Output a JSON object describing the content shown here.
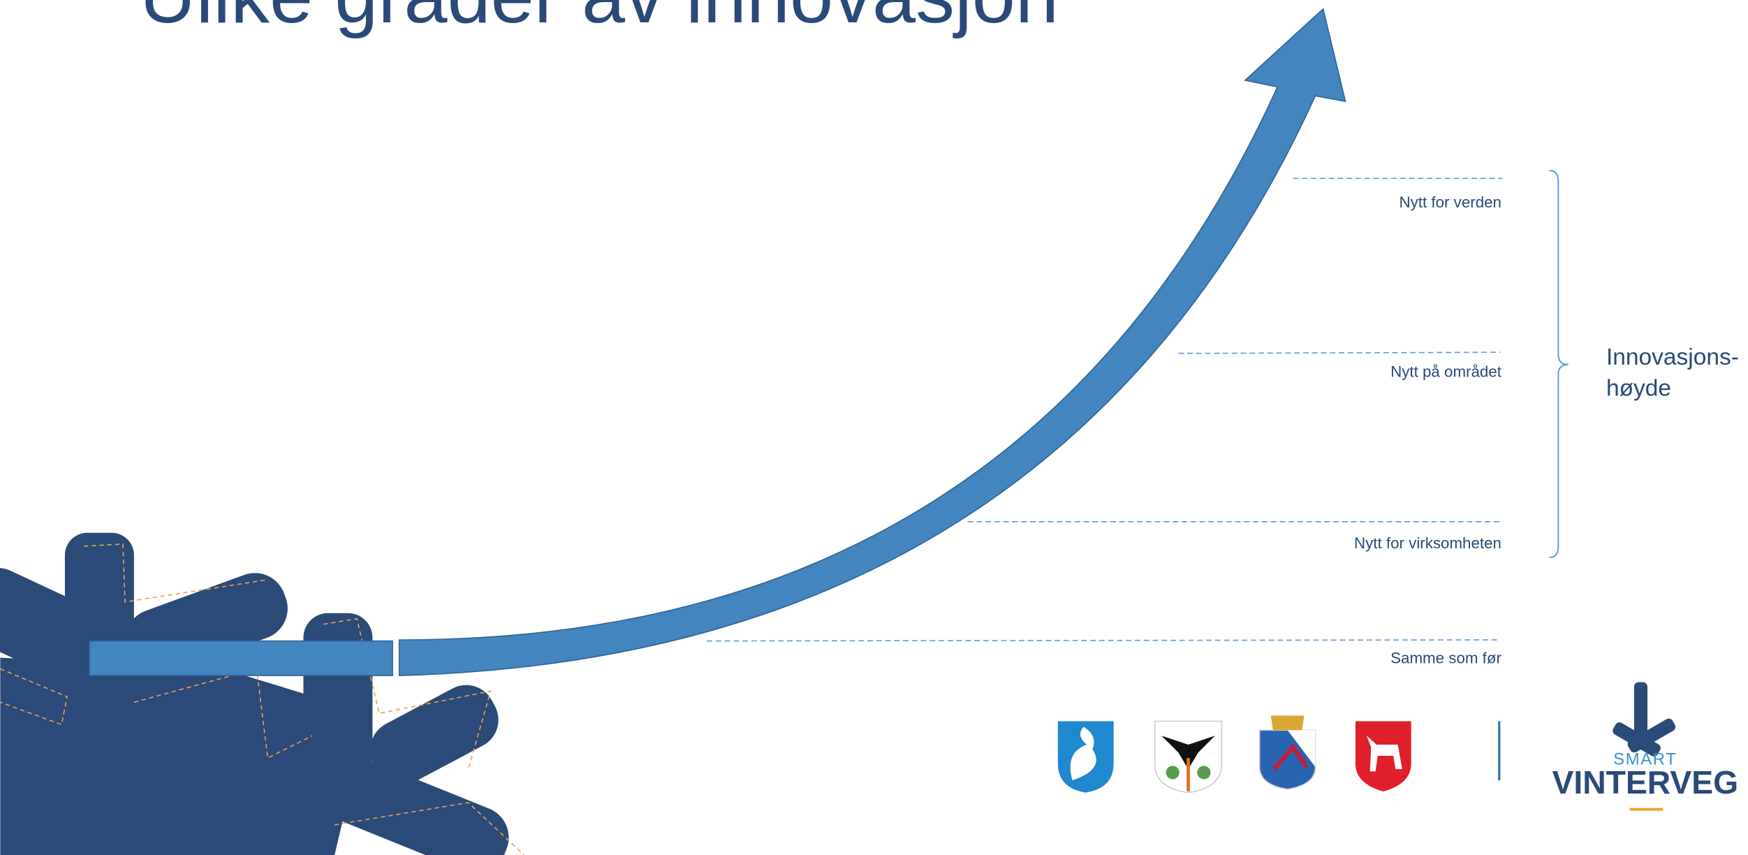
{
  "title": "Ulike grader av innovasjon",
  "levels": [
    "Nytt for verden",
    "Nytt på området",
    "Nytt for virksomheten",
    "Samme som før"
  ],
  "axis_label": [
    "Innovasjons-",
    "høyde"
  ],
  "logo": {
    "top": "SMART",
    "bottom": "VINTERVEG"
  }
}
